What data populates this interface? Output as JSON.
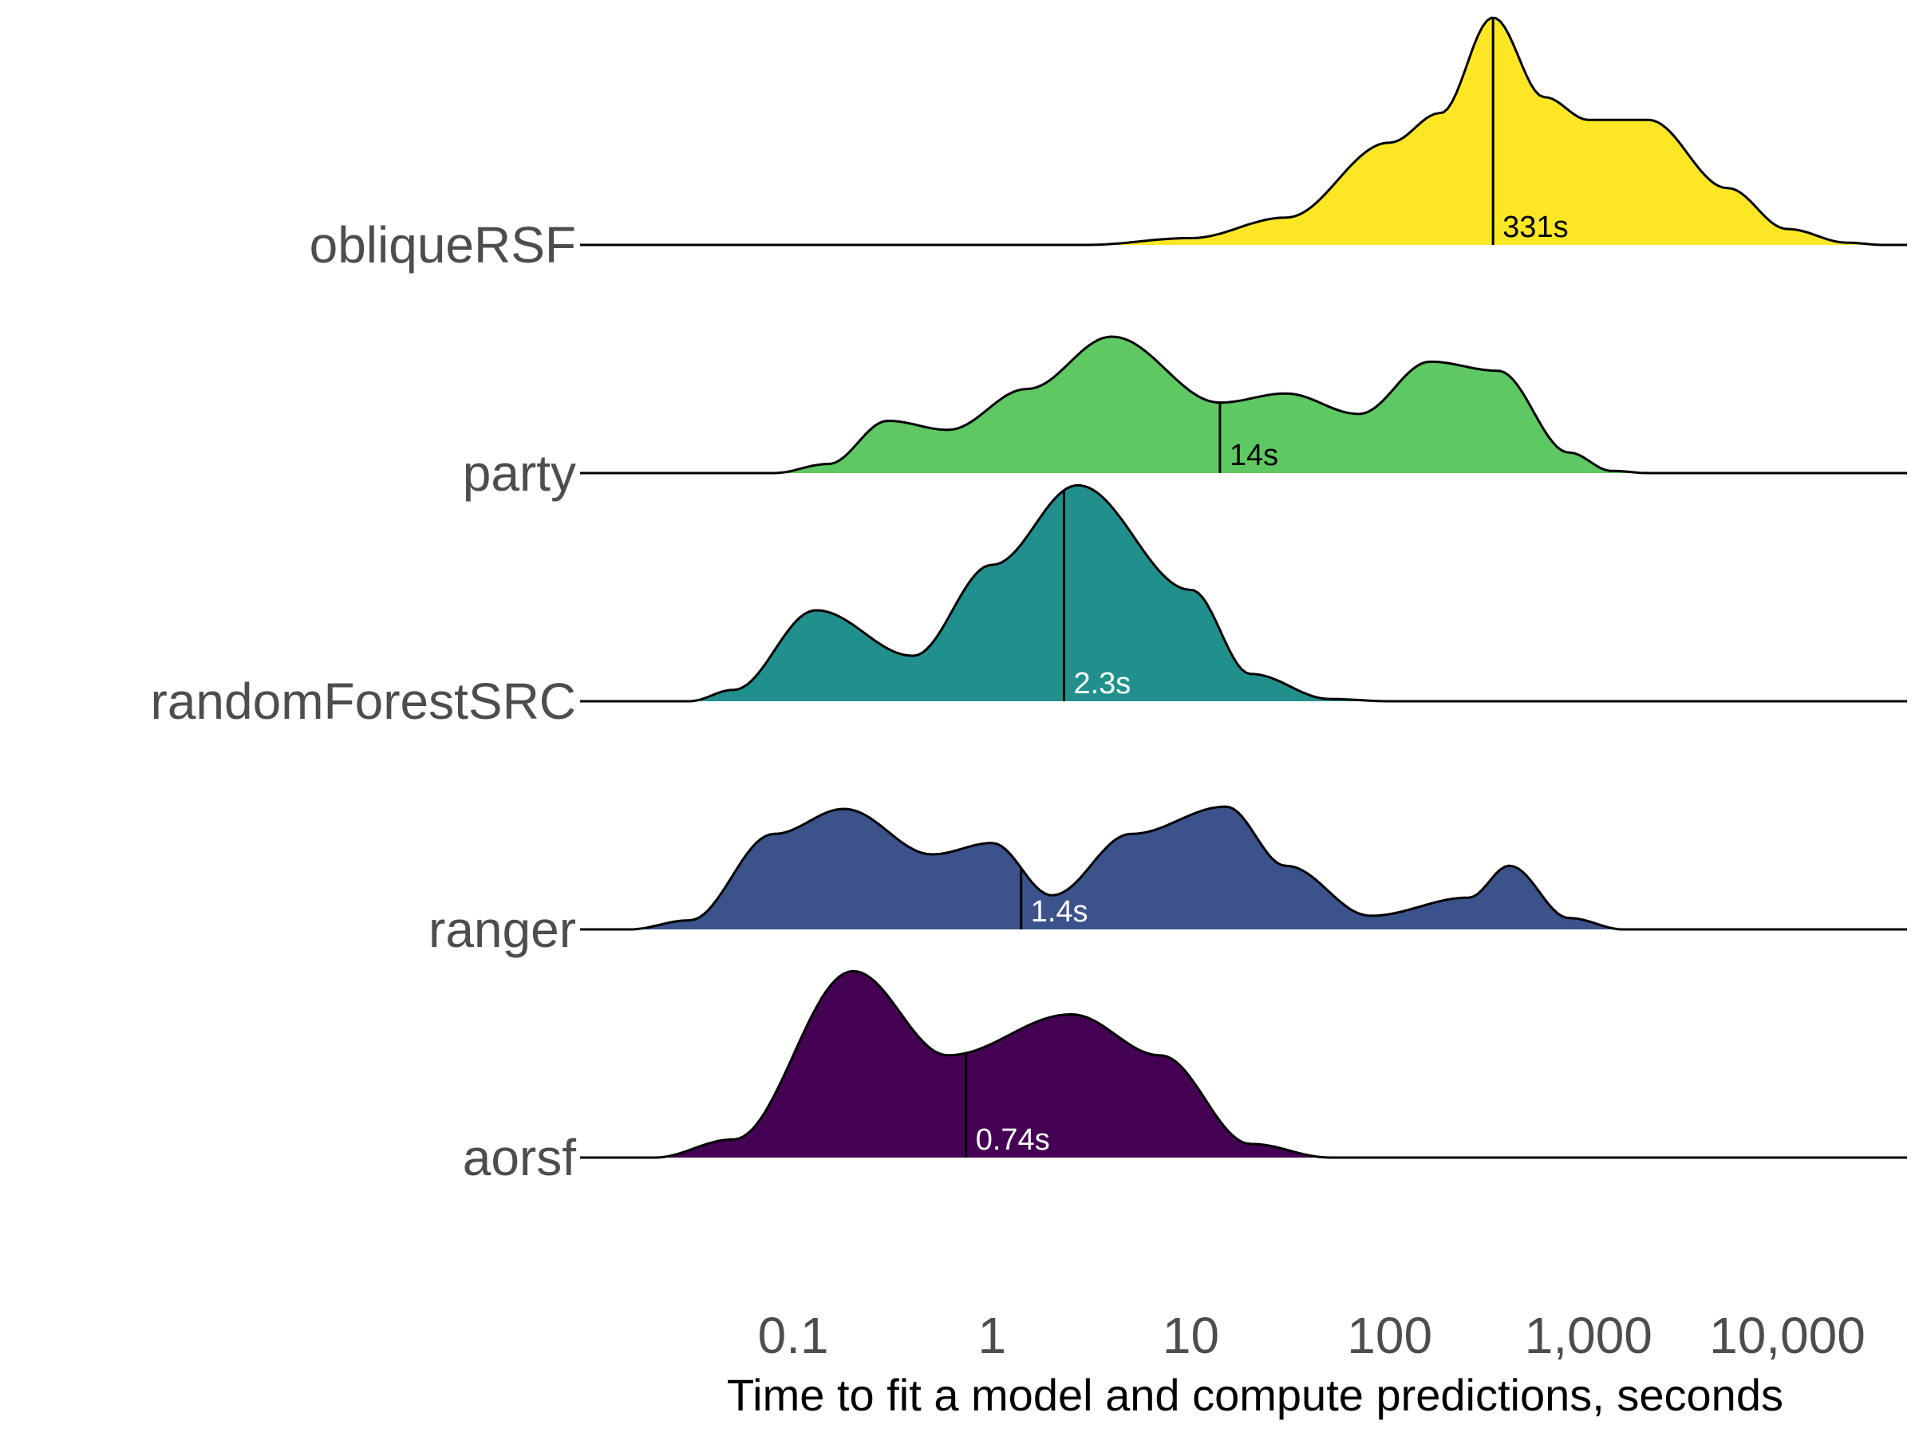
{
  "chart_data": {
    "type": "ridgeline",
    "xlabel": "Time to fit a model and compute predictions, seconds",
    "x_scale": "log10",
    "xlim": [
      0.01,
      40000
    ],
    "x_ticks": [
      0.1,
      1,
      10,
      100,
      1000,
      10000
    ],
    "x_tick_labels": [
      "0.1",
      "1",
      "10",
      "100",
      "1,000",
      "10,000"
    ],
    "grid": false,
    "legend": "none",
    "series": [
      {
        "name": "obliqueRSF",
        "color": "#FDE725",
        "median": 331,
        "median_label": "331s",
        "median_label_color": "#000000",
        "density": [
          [
            3,
            0
          ],
          [
            10,
            0.03
          ],
          [
            30,
            0.12
          ],
          [
            100,
            0.45
          ],
          [
            180,
            0.58
          ],
          [
            331,
            1.0
          ],
          [
            600,
            0.65
          ],
          [
            1000,
            0.55
          ],
          [
            2000,
            0.55
          ],
          [
            5000,
            0.25
          ],
          [
            10000,
            0.07
          ],
          [
            20000,
            0.01
          ],
          [
            30000,
            0
          ]
        ]
      },
      {
        "name": "party",
        "color": "#5EC962",
        "median": 14,
        "median_label": "14s",
        "median_label_color": "#000000",
        "density": [
          [
            0.08,
            0
          ],
          [
            0.15,
            0.04
          ],
          [
            0.3,
            0.23
          ],
          [
            0.6,
            0.19
          ],
          [
            1.5,
            0.37
          ],
          [
            4,
            0.6
          ],
          [
            14,
            0.31
          ],
          [
            30,
            0.35
          ],
          [
            70,
            0.26
          ],
          [
            160,
            0.49
          ],
          [
            350,
            0.45
          ],
          [
            800,
            0.09
          ],
          [
            1300,
            0.01
          ],
          [
            2000,
            0
          ]
        ]
      },
      {
        "name": "randomForestSRC",
        "color": "#21908C",
        "median": 2.3,
        "median_label": "2.3s",
        "median_label_color": "#ffffff",
        "density": [
          [
            0.03,
            0
          ],
          [
            0.05,
            0.05
          ],
          [
            0.13,
            0.4
          ],
          [
            0.4,
            0.2
          ],
          [
            1,
            0.6
          ],
          [
            2.7,
            0.95
          ],
          [
            10,
            0.49
          ],
          [
            20,
            0.12
          ],
          [
            50,
            0.01
          ],
          [
            100,
            0
          ]
        ]
      },
      {
        "name": "ranger",
        "color": "#3B528B",
        "median": 1.4,
        "median_label": "1.4s",
        "median_label_color": "#ffffff",
        "density": [
          [
            0.015,
            0
          ],
          [
            0.03,
            0.04
          ],
          [
            0.08,
            0.42
          ],
          [
            0.18,
            0.53
          ],
          [
            0.5,
            0.33
          ],
          [
            1,
            0.38
          ],
          [
            2,
            0.15
          ],
          [
            5,
            0.42
          ],
          [
            15,
            0.54
          ],
          [
            30,
            0.28
          ],
          [
            80,
            0.06
          ],
          [
            250,
            0.14
          ],
          [
            400,
            0.28
          ],
          [
            800,
            0.05
          ],
          [
            1500,
            0
          ]
        ]
      },
      {
        "name": "aorsf",
        "color": "#440154",
        "median": 0.74,
        "median_label": "0.74s",
        "median_label_color": "#ffffff",
        "density": [
          [
            0.02,
            0
          ],
          [
            0.05,
            0.08
          ],
          [
            0.2,
            0.82
          ],
          [
            0.6,
            0.45
          ],
          [
            2.5,
            0.63
          ],
          [
            7,
            0.45
          ],
          [
            20,
            0.06
          ],
          [
            50,
            0
          ]
        ]
      }
    ]
  }
}
